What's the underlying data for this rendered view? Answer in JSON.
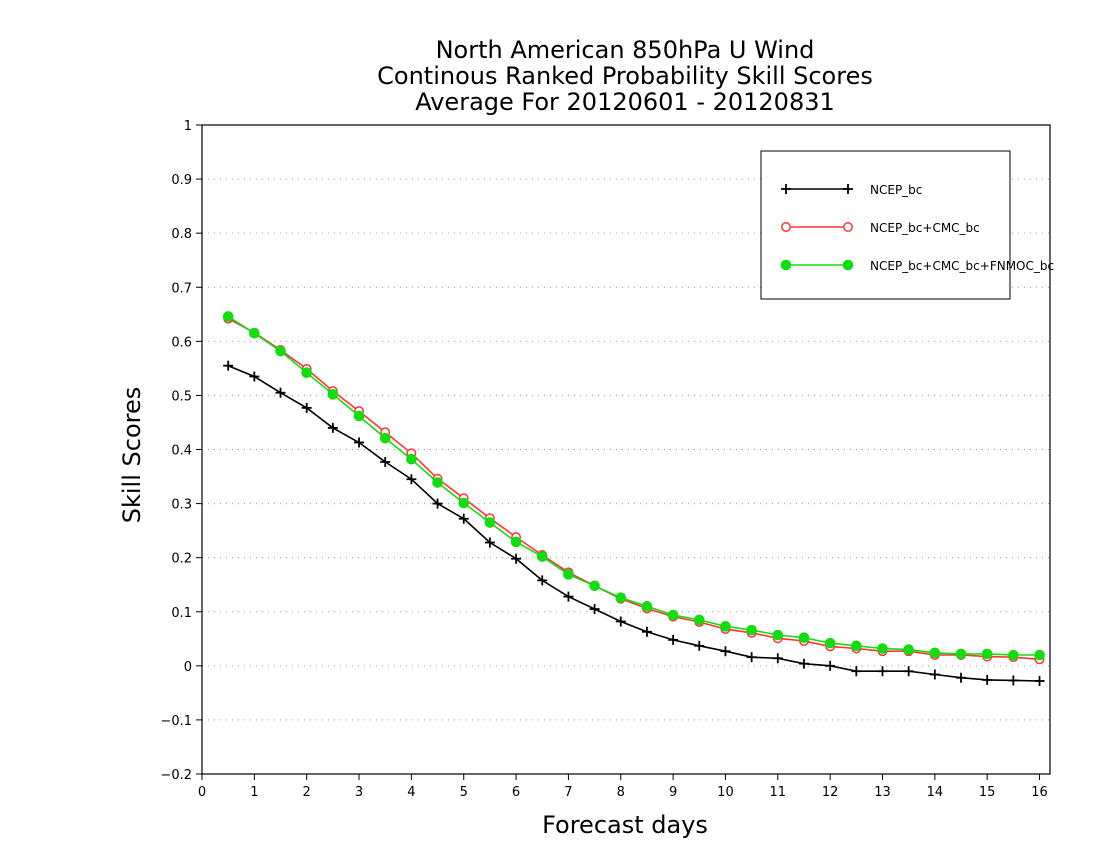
{
  "chart_data": {
    "type": "line",
    "title_lines": [
      "North American 850hPa U Wind",
      "Continous Ranked Probability Skill Scores",
      "Average For 20120601 - 20120831"
    ],
    "xlabel": "Forecast days",
    "ylabel": "Skill Scores",
    "xlim": [
      0,
      16.2
    ],
    "ylim": [
      -0.2,
      1.0
    ],
    "x_ticks": [
      0,
      1,
      2,
      3,
      4,
      5,
      6,
      7,
      8,
      9,
      10,
      11,
      12,
      13,
      14,
      15,
      16
    ],
    "y_ticks": [
      -0.2,
      -0.1,
      0,
      0.1,
      0.2,
      0.3,
      0.4,
      0.5,
      0.6,
      0.7,
      0.8,
      0.9,
      1
    ],
    "y_tick_labels": [
      "−0.2",
      "−0.1",
      "0",
      "0.1",
      "0.2",
      "0.3",
      "0.4",
      "0.5",
      "0.6",
      "0.7",
      "0.8",
      "0.9",
      "1"
    ],
    "grid": "horizontal dotted",
    "legend_position": "top-right",
    "x": [
      0.5,
      1,
      1.5,
      2,
      2.5,
      3,
      3.5,
      4,
      4.5,
      5,
      5.5,
      6,
      6.5,
      7,
      7.5,
      8,
      8.5,
      9,
      9.5,
      10,
      10.5,
      11,
      11.5,
      12,
      12.5,
      13,
      13.5,
      14,
      14.5,
      15,
      15.5,
      16
    ],
    "series": [
      {
        "name": "NCEP_bc",
        "color": "#000000",
        "marker": "plus",
        "values": [
          0.555,
          0.535,
          0.505,
          0.477,
          0.44,
          0.413,
          0.377,
          0.345,
          0.3,
          0.272,
          0.228,
          0.198,
          0.158,
          0.128,
          0.105,
          0.082,
          0.063,
          0.048,
          0.037,
          0.027,
          0.016,
          0.014,
          0.004,
          0.0,
          -0.01,
          -0.01,
          -0.01,
          -0.016,
          -0.022,
          -0.026,
          -0.027,
          -0.028
        ]
      },
      {
        "name": "NCEP_bc+CMC_bc",
        "color": "#ff3333",
        "marker": "open-circle",
        "values": [
          0.642,
          0.616,
          0.584,
          0.549,
          0.508,
          0.471,
          0.432,
          0.393,
          0.346,
          0.31,
          0.273,
          0.238,
          0.205,
          0.173,
          0.148,
          0.124,
          0.106,
          0.091,
          0.081,
          0.068,
          0.061,
          0.051,
          0.046,
          0.036,
          0.032,
          0.027,
          0.027,
          0.02,
          0.02,
          0.017,
          0.016,
          0.012
        ]
      },
      {
        "name": "NCEP_bc+CMC_bc+FNMOC_bc",
        "color": "#11dd11",
        "marker": "filled-circle",
        "values": [
          0.646,
          0.615,
          0.582,
          0.542,
          0.502,
          0.462,
          0.421,
          0.382,
          0.339,
          0.301,
          0.265,
          0.229,
          0.202,
          0.169,
          0.148,
          0.126,
          0.11,
          0.094,
          0.085,
          0.073,
          0.066,
          0.057,
          0.052,
          0.042,
          0.037,
          0.032,
          0.03,
          0.024,
          0.022,
          0.022,
          0.02,
          0.02
        ]
      }
    ]
  }
}
